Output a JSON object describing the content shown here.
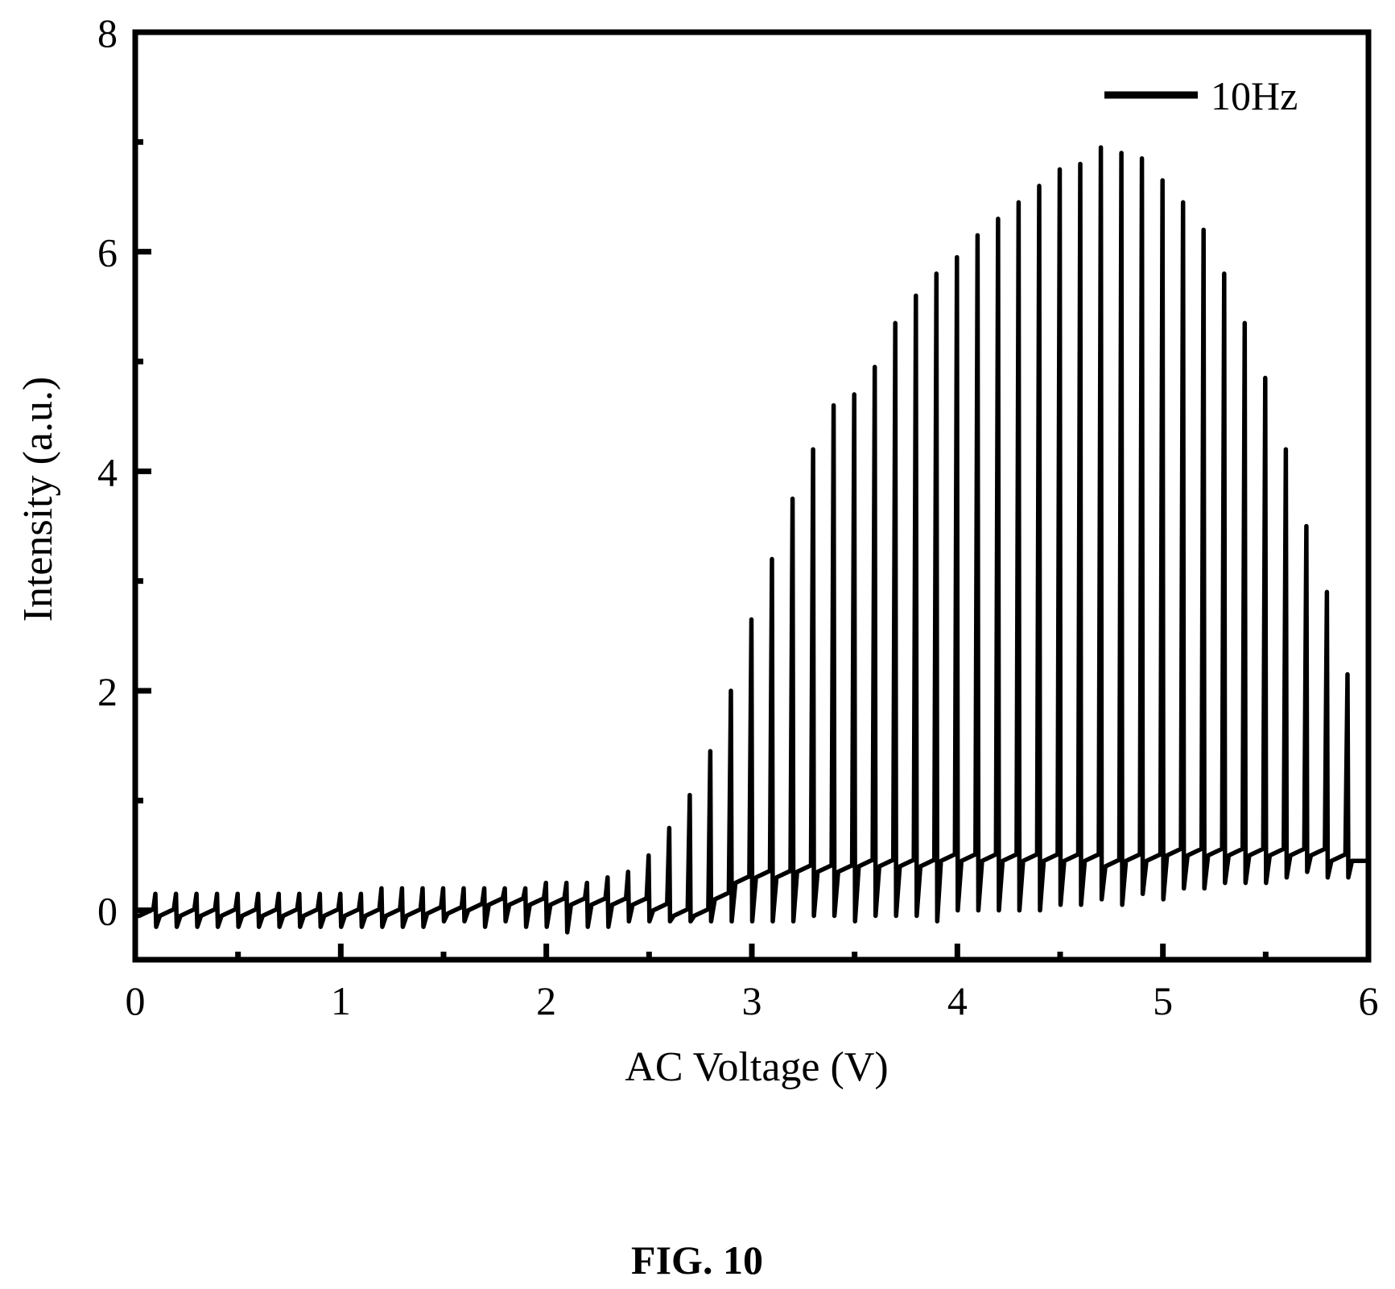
{
  "chart_data": {
    "type": "line",
    "xlabel": "AC Voltage (V)",
    "ylabel": "Intensity (a.u.)",
    "xlim": [
      0,
      6
    ],
    "ylim": [
      -0.45,
      8
    ],
    "xticks": [
      "0",
      "1",
      "2",
      "3",
      "4",
      "5",
      "6"
    ],
    "yticks": [
      "0",
      "2",
      "4",
      "6",
      "8"
    ],
    "grid": false,
    "legend_position": "top-right",
    "series": [
      {
        "name": "10Hz",
        "color": "#000000",
        "pulse_x": [
          0.1,
          0.2,
          0.3,
          0.4,
          0.5,
          0.6,
          0.7,
          0.8,
          0.9,
          1.0,
          1.1,
          1.2,
          1.3,
          1.4,
          1.5,
          1.6,
          1.7,
          1.8,
          1.9,
          2.0,
          2.1,
          2.2,
          2.3,
          2.4,
          2.5,
          2.6,
          2.7,
          2.8,
          2.9,
          3.0,
          3.1,
          3.2,
          3.3,
          3.4,
          3.5,
          3.6,
          3.7,
          3.8,
          3.9,
          4.0,
          4.1,
          4.2,
          4.3,
          4.4,
          4.5,
          4.6,
          4.7,
          4.8,
          4.9,
          5.0,
          5.1,
          5.2,
          5.3,
          5.4,
          5.5,
          5.6,
          5.7,
          5.8,
          5.9
        ],
        "pulse_peak": [
          0.15,
          0.15,
          0.15,
          0.15,
          0.15,
          0.15,
          0.15,
          0.15,
          0.15,
          0.15,
          0.15,
          0.2,
          0.2,
          0.2,
          0.2,
          0.2,
          0.2,
          0.2,
          0.2,
          0.25,
          0.25,
          0.25,
          0.3,
          0.35,
          0.5,
          0.75,
          1.05,
          1.45,
          2.0,
          2.65,
          3.2,
          3.75,
          4.2,
          4.6,
          4.7,
          4.95,
          5.35,
          5.6,
          5.8,
          5.95,
          6.15,
          6.3,
          6.45,
          6.6,
          6.75,
          6.8,
          6.95,
          6.9,
          6.85,
          6.65,
          6.45,
          6.2,
          5.8,
          5.35,
          4.85,
          4.2,
          3.5,
          2.9,
          2.15
        ],
        "pulse_low": [
          -0.15,
          -0.15,
          -0.15,
          -0.15,
          -0.15,
          -0.15,
          -0.15,
          -0.15,
          -0.15,
          -0.15,
          -0.15,
          -0.15,
          -0.15,
          -0.15,
          -0.1,
          -0.1,
          -0.15,
          -0.1,
          -0.15,
          -0.15,
          -0.2,
          -0.15,
          -0.15,
          -0.1,
          -0.1,
          -0.1,
          -0.1,
          -0.1,
          -0.1,
          -0.1,
          -0.1,
          -0.1,
          -0.05,
          -0.05,
          -0.1,
          -0.05,
          -0.05,
          -0.05,
          -0.1,
          0.0,
          0.0,
          0.0,
          0.0,
          0.0,
          0.05,
          0.05,
          0.1,
          0.05,
          0.15,
          0.1,
          0.2,
          0.2,
          0.25,
          0.25,
          0.25,
          0.3,
          0.35,
          0.3,
          0.3
        ],
        "baseline": [
          -0.05,
          -0.05,
          -0.05,
          -0.05,
          -0.05,
          -0.05,
          -0.05,
          -0.05,
          -0.05,
          -0.05,
          -0.05,
          -0.05,
          -0.05,
          -0.05,
          -0.03,
          -0.03,
          0.0,
          0.05,
          0.05,
          0.05,
          0.05,
          0.05,
          0.05,
          0.05,
          0.05,
          0.0,
          -0.05,
          -0.05,
          0.1,
          0.25,
          0.3,
          0.3,
          0.35,
          0.35,
          0.35,
          0.4,
          0.4,
          0.4,
          0.4,
          0.45,
          0.45,
          0.45,
          0.45,
          0.45,
          0.45,
          0.45,
          0.45,
          0.4,
          0.45,
          0.45,
          0.5,
          0.5,
          0.5,
          0.5,
          0.5,
          0.5,
          0.5,
          0.5,
          0.45
        ]
      }
    ]
  },
  "figure": {
    "caption": "FIG. 10"
  }
}
